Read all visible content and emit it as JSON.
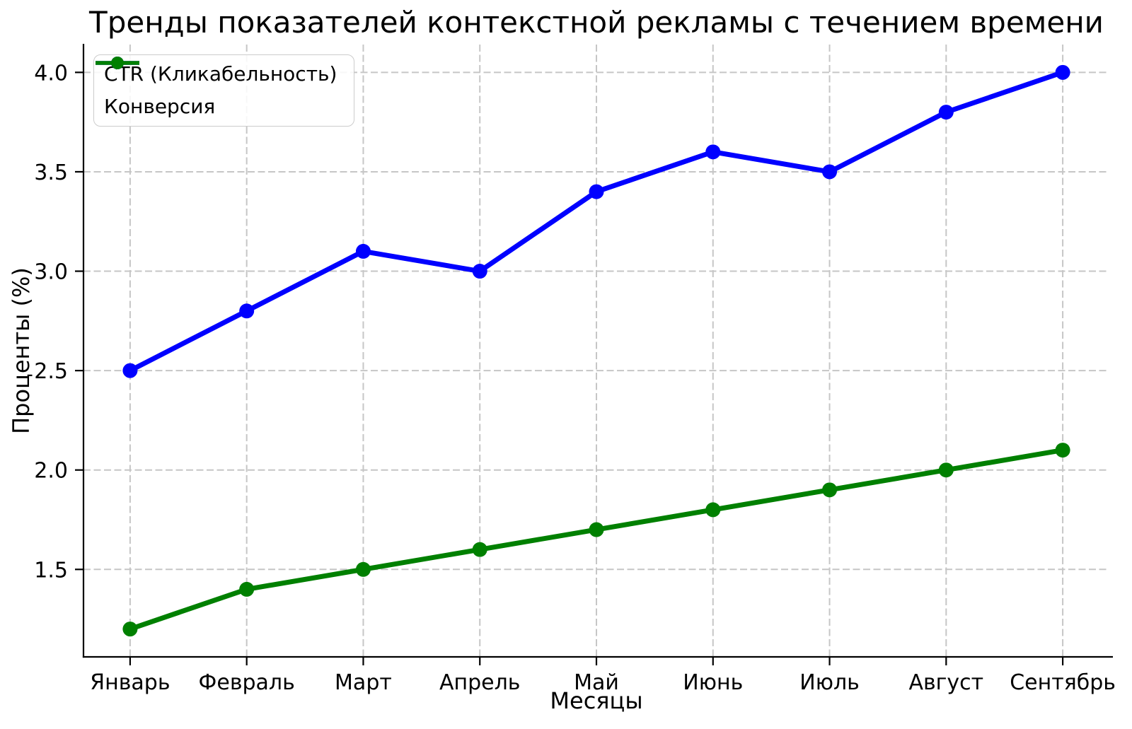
{
  "chart_data": {
    "type": "line",
    "title": "Тренды показателей контекстной рекламы с течением времени",
    "xlabel": "Месяцы",
    "ylabel": "Проценты (%)",
    "categories": [
      "Январь",
      "Февраль",
      "Март",
      "Апрель",
      "Май",
      "Июнь",
      "Июль",
      "Август",
      "Сентябрь"
    ],
    "series": [
      {
        "name": "CTR (Кликабельность)",
        "color": "#0000ff",
        "values": [
          2.5,
          2.8,
          3.1,
          3.0,
          3.4,
          3.6,
          3.5,
          3.8,
          4.0
        ]
      },
      {
        "name": "Конверсия",
        "color": "#008000",
        "values": [
          1.2,
          1.4,
          1.5,
          1.6,
          1.7,
          1.8,
          1.9,
          2.0,
          2.1
        ]
      }
    ],
    "y_ticks": [
      1.5,
      2.0,
      2.5,
      3.0,
      3.5,
      4.0
    ],
    "y_tick_labels": [
      "1.5",
      "2.0",
      "2.5",
      "3.0",
      "3.5",
      "4.0"
    ],
    "ylim": [
      1.06,
      4.14
    ],
    "xlim": [
      -0.4,
      8.4
    ],
    "grid": true,
    "legend_position": "upper left",
    "grid_color": "#c6c6c6",
    "text_color": "#000000",
    "background_color": "#ffffff"
  }
}
